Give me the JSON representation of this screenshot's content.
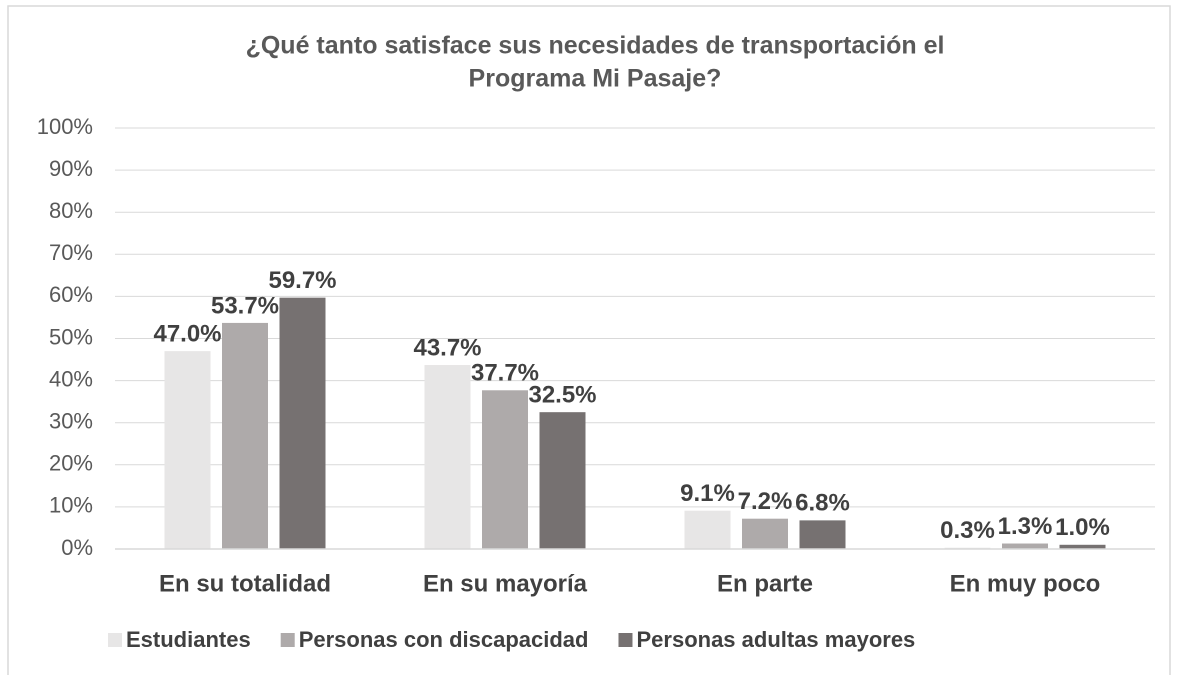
{
  "chart_data": {
    "type": "bar",
    "title": [
      "¿Qué tanto satisface sus necesidades de transportación el",
      "Programa Mi Pasaje?"
    ],
    "categories": [
      "En su totalidad",
      "En su mayoría",
      "En parte",
      "En muy poco"
    ],
    "series": [
      {
        "name": "Estudiantes",
        "color": "#e7e6e6",
        "values": [
          47.0,
          43.7,
          9.1,
          0.3
        ],
        "value_labels": [
          "47.0%",
          "43.7%",
          "9.1%",
          "0.3%"
        ]
      },
      {
        "name": "Personas con discapacidad",
        "color": "#aeaaaa",
        "values": [
          53.7,
          37.7,
          7.2,
          1.3
        ],
        "value_labels": [
          "53.7%",
          "37.7%",
          "7.2%",
          "1.3%"
        ]
      },
      {
        "name": "Personas adultas mayores",
        "color": "#767171",
        "values": [
          59.7,
          32.5,
          6.8,
          1.0
        ],
        "value_labels": [
          "59.7%",
          "32.5%",
          "6.8%",
          "1.0%"
        ]
      }
    ],
    "ylim": [
      0,
      100
    ],
    "yticks": [
      {
        "value": 0,
        "label": "0%"
      },
      {
        "value": 10,
        "label": "10%"
      },
      {
        "value": 20,
        "label": "20%"
      },
      {
        "value": 30,
        "label": "30%"
      },
      {
        "value": 40,
        "label": "40%"
      },
      {
        "value": 50,
        "label": "50%"
      },
      {
        "value": 60,
        "label": "60%"
      },
      {
        "value": 70,
        "label": "70%"
      },
      {
        "value": 80,
        "label": "80%"
      },
      {
        "value": 90,
        "label": "90%"
      },
      {
        "value": 100,
        "label": "100%"
      }
    ],
    "grid": true,
    "legend": "bottom"
  }
}
